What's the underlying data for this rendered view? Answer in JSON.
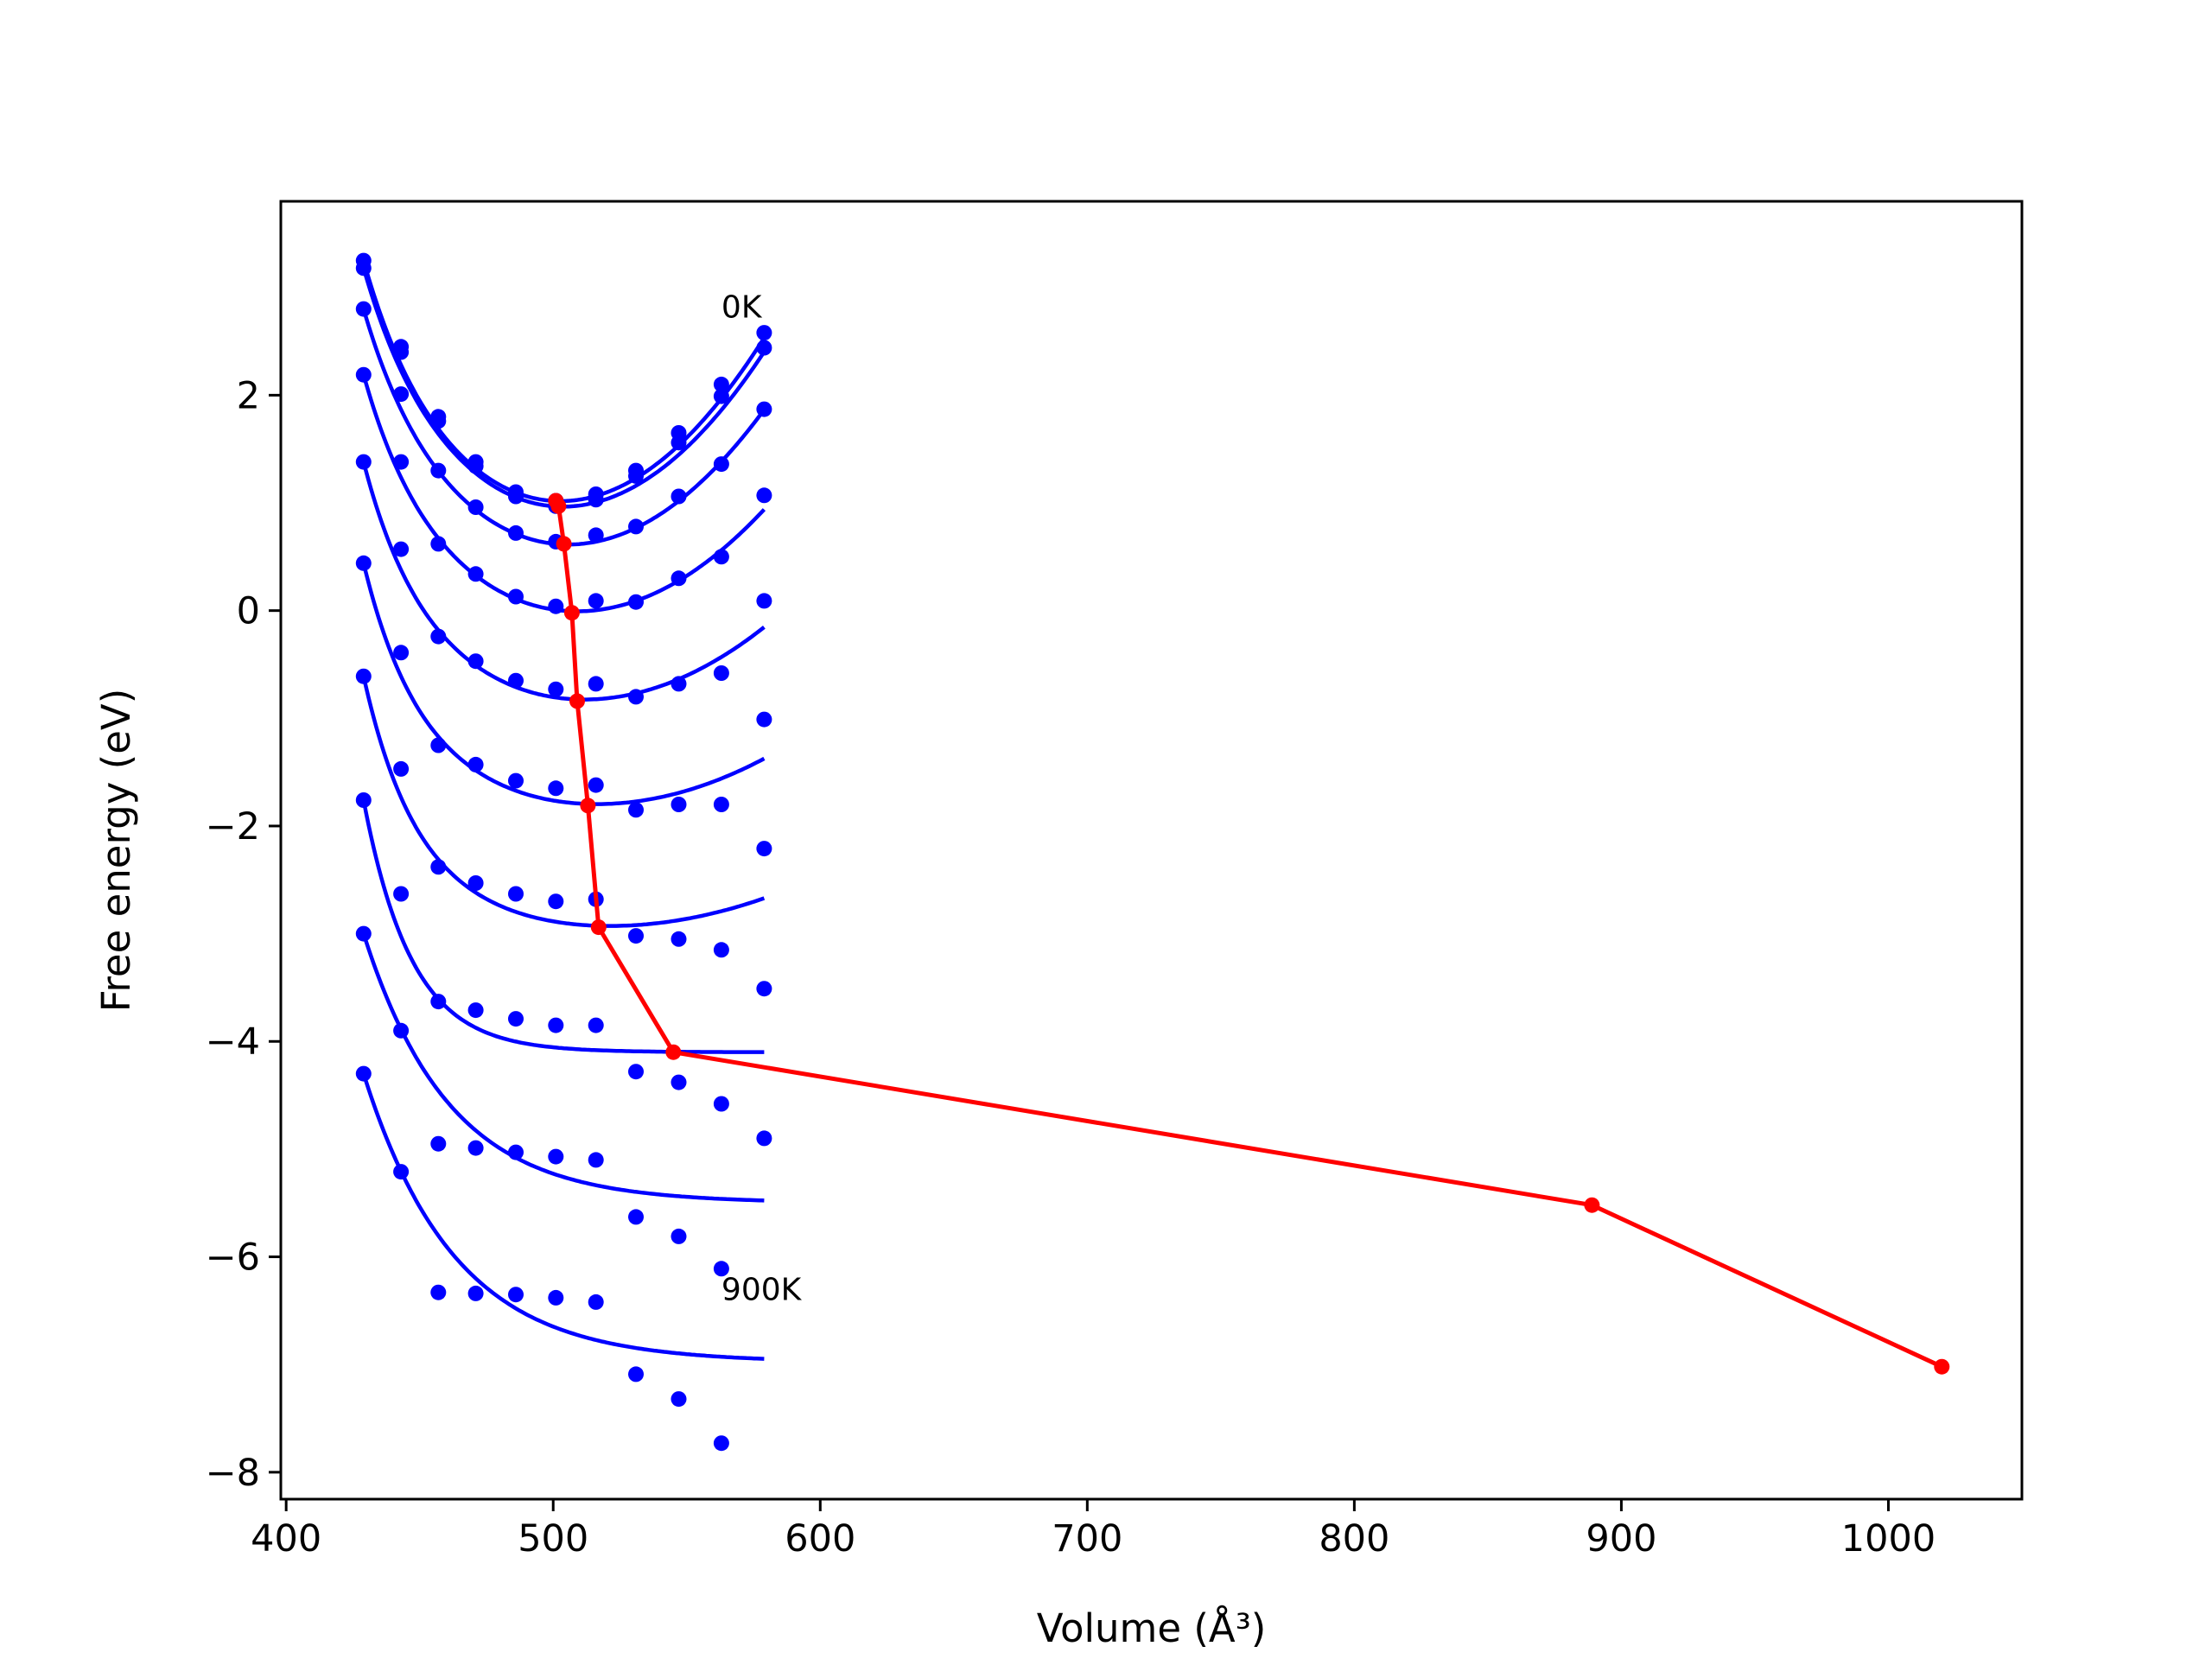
{
  "chart_data": {
    "type": "line",
    "xlabel": "Volume (Å³)",
    "ylabel": "Free energy (eV)",
    "xlim": [
      398,
      1050
    ],
    "ylim": [
      -8.25,
      3.8
    ],
    "xticks": [
      400,
      500,
      600,
      700,
      800,
      900,
      1000
    ],
    "yticks": [
      -8,
      -6,
      -4,
      -2,
      0,
      2
    ],
    "grid": false,
    "annotations": [
      {
        "text": "0K",
        "x": 563,
        "y": 2.72
      },
      {
        "text": "900K",
        "x": 563,
        "y": -6.4
      }
    ],
    "colors": {
      "curves": "#0000ff",
      "minima": "#ff0000"
    },
    "volumes": [
      429,
      443,
      457,
      471,
      486,
      501,
      516,
      531,
      547,
      563,
      579
    ],
    "temperatures": [
      {
        "points": [
          3.25,
          2.45,
          1.8,
          1.38,
          1.1,
          1.02,
          1.08,
          1.3,
          1.65,
          2.1,
          2.58
        ],
        "fit": {
          "vmin": 501,
          "emin": 1.0,
          "k": 0.000252,
          "q": 0.0,
          "tail": 0.0,
          "tau": 18
        }
      },
      {
        "points": [
          3.18,
          2.4,
          1.76,
          1.34,
          1.06,
          0.97,
          1.03,
          1.25,
          1.56,
          1.99,
          2.44
        ],
        "fit": {
          "vmin": 502,
          "emin": 0.95,
          "k": 0.000245,
          "q": 0.0,
          "tail": 0.0,
          "tau": 18
        }
      },
      {
        "points": [
          2.8,
          2.01,
          1.3,
          0.96,
          0.72,
          0.64,
          0.7,
          0.78,
          1.06,
          1.36,
          1.87
        ],
        "fit": {
          "vmin": 504,
          "emin": 0.6,
          "k": 0.000225,
          "q": 0.0,
          "tail": 0.0,
          "tau": 18
        }
      },
      {
        "points": [
          2.19,
          1.38,
          0.62,
          0.34,
          0.13,
          0.04,
          0.09,
          0.08,
          0.3,
          0.5,
          1.07
        ],
        "fit": {
          "vmin": 507,
          "emin": -0.02,
          "k": 0.000185,
          "q": 0.0,
          "tail": 0.0,
          "tau": 18
        }
      },
      {
        "points": [
          1.38,
          0.57,
          -0.24,
          -0.47,
          -0.65,
          -0.73,
          -0.68,
          -0.8,
          -0.68,
          -0.58,
          0.09
        ],
        "fit": {
          "vmin": 509,
          "emin": -0.84,
          "k": 0.00014,
          "q": 0.0,
          "tail": 0.0,
          "tau": 18
        }
      },
      {
        "points": [
          0.44,
          -0.39,
          -1.25,
          -1.43,
          -1.58,
          -1.65,
          -1.62,
          -1.85,
          -1.8,
          -1.8,
          -1.01
        ],
        "fit": {
          "vmin": 513,
          "emin": -1.81,
          "k": 0.0001,
          "q": 0.0,
          "tail": 0.0,
          "tau": 18
        }
      },
      {
        "points": [
          -0.61,
          -1.47,
          -2.38,
          -2.53,
          -2.63,
          -2.7,
          -2.68,
          -3.02,
          -3.05,
          -3.15,
          -2.21
        ],
        "fit": {
          "vmin": 517,
          "emin": -2.94,
          "k": 7e-05,
          "q": 0.0,
          "tail": 0.0,
          "tau": 18
        }
      },
      {
        "points": [
          -1.76,
          -2.63,
          -3.63,
          -3.71,
          -3.79,
          -3.85,
          -3.85,
          -4.28,
          -4.38,
          -4.58,
          -3.51
        ],
        "fit": {
          "vmin": 545,
          "emin": -4.1,
          "k": 0.0,
          "q": 0.0,
          "tail": 0.0,
          "tau": 18
        }
      },
      {
        "points": [
          -3.0,
          -3.9,
          -4.95,
          -4.99,
          -5.03,
          -5.07,
          -5.1,
          -5.63,
          -5.81,
          -6.11,
          -4.9
        ],
        "fit": {
          "vmin": 545,
          "emin": -5.5,
          "k": 0.0,
          "q": 0.0,
          "tail": 1.72,
          "tau": 32
        }
      },
      {
        "points": [
          -4.3,
          -5.21,
          -6.33,
          -6.34,
          -6.35,
          -6.38,
          -6.42,
          -7.09,
          -7.32,
          -7.73,
          null
        ],
        "fit": {
          "vmin": 545,
          "emin": -6.98,
          "k": 0.0,
          "q": 0.0,
          "tail": 1.95,
          "tau": 34
        }
      }
    ],
    "minima_series": {
      "x": [
        501,
        502,
        504,
        507,
        509,
        513,
        517,
        545,
        889,
        1020
      ],
      "y": [
        1.02,
        0.97,
        0.62,
        -0.02,
        -0.84,
        -1.81,
        -2.94,
        -4.1,
        -5.52,
        -7.02
      ]
    }
  }
}
